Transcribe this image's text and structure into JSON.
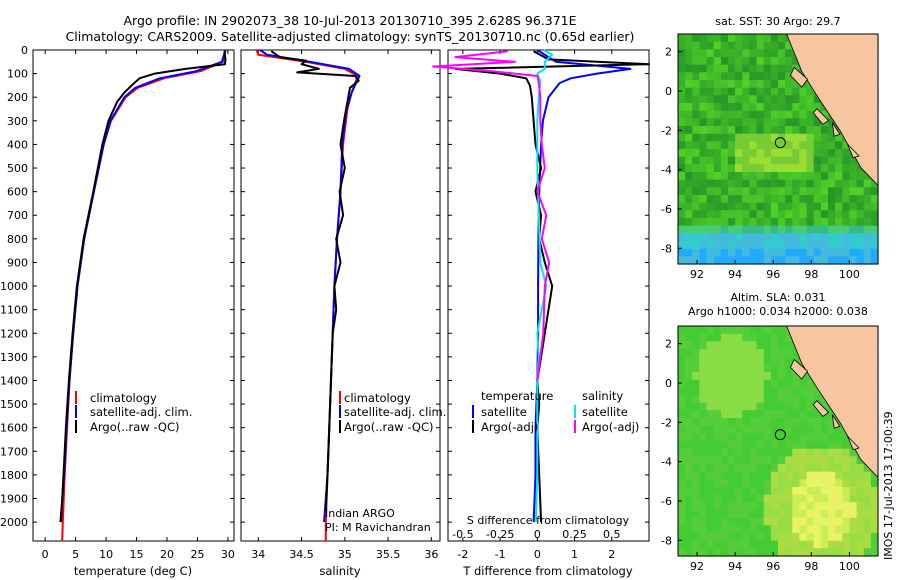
{
  "title": {
    "line1": "Argo profile: IN 2902073_38 10-Jul-2013 20130710_395 2.628S 96.371E",
    "line2": "Climatology: CARS2009. Satellite-adjusted climatology: synTS_20130710.nc (0.65d earlier)"
  },
  "chart_data": [
    {
      "id": "temperature",
      "type": "line",
      "xlabel": "temperature (deg C)",
      "ylabel": "",
      "xlim": [
        -2,
        31
      ],
      "ylim": [
        2080,
        0
      ],
      "xticks": [
        0,
        5,
        10,
        15,
        20,
        25,
        30
      ],
      "yticks": [
        0,
        100,
        200,
        300,
        400,
        500,
        600,
        700,
        800,
        900,
        1000,
        1100,
        1200,
        1300,
        1400,
        1500,
        1600,
        1700,
        1800,
        1900,
        2000
      ],
      "legend": [
        "climatology",
        "satellite-adj. clim.",
        "Argo(..raw -QC)"
      ],
      "series": [
        {
          "name": "climatology",
          "color": "#ff0000",
          "depth": [
            0,
            50,
            90,
            120,
            160,
            200,
            300,
            400,
            600,
            800,
            1000,
            1200,
            1400,
            1600,
            1800,
            2000,
            2080
          ],
          "values": [
            29.6,
            29.2,
            25.5,
            19.5,
            15.2,
            13.2,
            10.8,
            9.6,
            8.0,
            6.4,
            5.3,
            4.6,
            4.0,
            3.6,
            3.2,
            2.9,
            2.8
          ]
        },
        {
          "name": "satellite-adj. clim.",
          "color": "#0000ff",
          "depth": [
            0,
            50,
            90,
            120,
            160,
            200,
            300,
            400,
            600,
            800,
            1000,
            1200,
            1400,
            1600,
            1800,
            2000
          ],
          "values": [
            29.6,
            29.0,
            24.8,
            18.8,
            14.8,
            13.0,
            10.7,
            9.6,
            8.0,
            6.4,
            5.3,
            4.6,
            4.0,
            3.5,
            3.1,
            2.5
          ]
        },
        {
          "name": "Argo(..raw -QC)",
          "color": "#000000",
          "depth": [
            5,
            40,
            60,
            80,
            100,
            120,
            150,
            180,
            220,
            300,
            400,
            600,
            800,
            1000,
            1200,
            1400,
            1600,
            1800,
            2000
          ],
          "values": [
            29.4,
            29.6,
            29.5,
            23.0,
            18.0,
            15.5,
            14.2,
            13.0,
            11.8,
            10.4,
            9.4,
            7.9,
            6.3,
            5.2,
            4.5,
            3.9,
            3.4,
            3.0,
            2.6
          ]
        }
      ]
    },
    {
      "id": "salinity",
      "type": "line",
      "xlabel": "salinity",
      "xlim": [
        33.8,
        36.1
      ],
      "ylim": [
        2080,
        0
      ],
      "xticks": [
        34,
        34.5,
        35,
        35.5,
        36
      ],
      "legend": [
        "climatology",
        "satellite-adj. clim.",
        "Argo(..raw -QC)"
      ],
      "annotation": [
        "Indian ARGO",
        "PI: M Ravichandran"
      ],
      "series": [
        {
          "name": "climatology",
          "color": "#ff0000",
          "depth": [
            0,
            20,
            50,
            80,
            110,
            140,
            180,
            250,
            400,
            600,
            800,
            1000,
            1200,
            1500,
            1800,
            2000,
            2080
          ],
          "values": [
            33.98,
            34.0,
            34.55,
            35.0,
            35.15,
            35.12,
            35.08,
            35.03,
            34.98,
            34.95,
            34.91,
            34.88,
            34.86,
            34.83,
            34.8,
            34.78,
            34.78
          ]
        },
        {
          "name": "satellite-adj. clim.",
          "color": "#0000ff",
          "depth": [
            0,
            20,
            50,
            80,
            110,
            140,
            180,
            250,
            400,
            600,
            800,
            1000,
            1200,
            1500,
            1800,
            2000
          ],
          "values": [
            34.02,
            34.1,
            34.6,
            35.05,
            35.17,
            35.13,
            35.08,
            35.02,
            34.97,
            34.95,
            34.91,
            34.88,
            34.86,
            34.83,
            34.8,
            34.76
          ]
        },
        {
          "name": "Argo(..raw -QC)",
          "color": "#000000",
          "depth": [
            5,
            30,
            45,
            60,
            80,
            95,
            110,
            130,
            160,
            220,
            300,
            400,
            500,
            600,
            700,
            800,
            900,
            1000,
            1100,
            1200,
            1400,
            1600,
            1800,
            1950
          ],
          "values": [
            34.15,
            34.25,
            34.55,
            34.5,
            34.7,
            34.45,
            35.12,
            35.16,
            35.06,
            35.03,
            34.99,
            34.95,
            35.0,
            34.94,
            34.98,
            34.9,
            34.95,
            34.88,
            34.9,
            34.86,
            34.84,
            34.82,
            34.8,
            34.78
          ]
        }
      ]
    },
    {
      "id": "difference",
      "type": "line",
      "xlabel": "T difference from climatology",
      "xlabel_top": "S difference from climatology",
      "xlim": [
        -2.4,
        3.0
      ],
      "ylim": [
        2080,
        0
      ],
      "xticks_t": [
        -2,
        -1,
        0,
        1,
        2
      ],
      "xticks_s": [
        -0.5,
        -0.25,
        0,
        0.25,
        0.5
      ],
      "legend_t": {
        "title": "temperature",
        "items": [
          "satellite",
          "Argo(-adj)"
        ]
      },
      "legend_s": {
        "title": "salinity",
        "items": [
          "satellite",
          "Argo(-adj)"
        ]
      },
      "series": [
        {
          "name": "T satellite",
          "color": "#0000ff",
          "depth": [
            0,
            50,
            80,
            100,
            120,
            140,
            200,
            300,
            400,
            600,
            800,
            1000,
            1200,
            1400,
            1600,
            1800,
            2000
          ],
          "values": [
            0.0,
            0.5,
            2.5,
            1.6,
            0.9,
            0.6,
            0.3,
            0.15,
            0.1,
            0.05,
            0.03,
            0.02,
            0.02,
            0.0,
            -0.05,
            -0.05,
            -0.1
          ]
        },
        {
          "name": "T Argo(-adj)",
          "color": "#000000",
          "depth": [
            5,
            40,
            60,
            80,
            100,
            120,
            150,
            200,
            300,
            400,
            500,
            600,
            700,
            800,
            900,
            1000,
            1100,
            1200,
            1300,
            1400,
            1500,
            1600,
            1800,
            2000
          ],
          "values": [
            -0.1,
            0.3,
            3.0,
            -2.2,
            -1.0,
            -0.3,
            -0.2,
            -0.15,
            -0.1,
            -0.05,
            0.1,
            -0.05,
            0.1,
            0.05,
            0.2,
            0.4,
            0.3,
            0.2,
            0.1,
            0.0,
            0.05,
            0.0,
            0.05,
            0.1
          ]
        },
        {
          "name": "S satellite",
          "color": "#00e5ee",
          "depth": [
            0,
            20,
            50,
            80,
            100,
            130,
            200,
            300,
            500,
            700,
            900,
            1000,
            1100,
            1200,
            1300,
            1400,
            1600,
            1800,
            2000
          ],
          "values": [
            0.04,
            0.1,
            0.05,
            0.05,
            0.0,
            0.02,
            0.01,
            0.0,
            0.0,
            0.01,
            0.02,
            0.06,
            0.03,
            0.0,
            0.01,
            0.0,
            0.0,
            0.0,
            -0.01
          ]
        },
        {
          "name": "S Argo(-adj)",
          "color": "#ff00ff",
          "depth": [
            5,
            30,
            50,
            70,
            90,
            110,
            140,
            200,
            300,
            400,
            500,
            600,
            700,
            800,
            900,
            1000,
            1200,
            1400
          ],
          "values": [
            -0.2,
            -0.55,
            -0.15,
            -0.7,
            -0.3,
            0.0,
            0.01,
            0.02,
            0.02,
            0.03,
            0.05,
            0.0,
            0.06,
            0.03,
            0.08,
            0.05,
            0.04,
            0.0
          ]
        }
      ]
    },
    {
      "id": "sst_map",
      "type": "heatmap",
      "title": "sat. SST: 30 Argo: 29.7",
      "xticks": [
        92,
        94,
        96,
        98,
        100
      ],
      "yticks": [
        2,
        0,
        -2,
        -4,
        -6,
        -8
      ],
      "xlim": [
        91.0,
        101.5
      ],
      "ylim": [
        -8.8,
        2.9
      ],
      "marker": {
        "lon": 96.371,
        "lat": -2.628
      }
    },
    {
      "id": "sla_map",
      "type": "heatmap",
      "title": "Altim. SLA: 0.031",
      "subtitle": "Argo h1000: 0.034 h2000: 0.038",
      "xticks": [
        92,
        94,
        96,
        98,
        100
      ],
      "yticks": [
        2,
        0,
        -2,
        -4,
        -6,
        -8
      ],
      "xlim": [
        91.0,
        101.5
      ],
      "ylim": [
        -8.8,
        2.9
      ],
      "marker": {
        "lon": 96.371,
        "lat": -2.628
      }
    }
  ],
  "footer": "IMOS 17-Jul-2013 17:00:39",
  "colors": {
    "land": "#f7c59f",
    "sst_base": "#33cc33",
    "sla_base": "#33cc33"
  }
}
